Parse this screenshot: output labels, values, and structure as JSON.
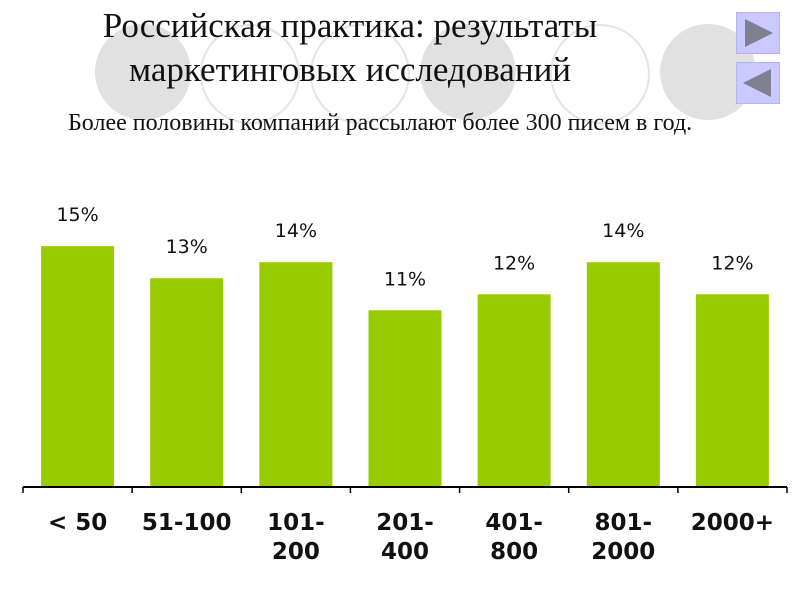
{
  "slide": {
    "title_line1": "Российская практика: результаты",
    "title_line2": "маркетинговых исследований",
    "subtitle": "Более половины компаний рассылают более  300 писем в год."
  },
  "nav": {
    "next_icon": "play-forward-icon",
    "prev_icon": "play-back-icon",
    "button_color": "#c9c9ff",
    "arrow_color": "#7f7f8f"
  },
  "chart_data": {
    "type": "bar",
    "categories": [
      "< 50",
      "51-100",
      "101-\n200",
      "201-\n400",
      "401-\n800",
      "801-\n2000",
      "2000+"
    ],
    "values": [
      15,
      13,
      14,
      11,
      12,
      14,
      12
    ],
    "data_labels": [
      "15%",
      "13%",
      "14%",
      "11%",
      "12%",
      "14%",
      "12%"
    ],
    "ylim": [
      0,
      16.5
    ],
    "bar_color": "#99cc00",
    "grid": false,
    "legend": "none"
  }
}
